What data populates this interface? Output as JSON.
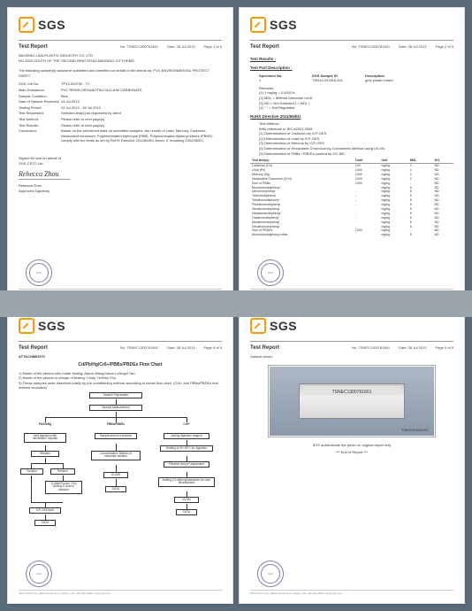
{
  "brand": {
    "name": "SGS",
    "seal_text": "SGS"
  },
  "gray_band_color": "#9aa4aa",
  "report": {
    "title": "Test Report",
    "no_label": "No.",
    "no": "TSNEC1300761601",
    "date_label": "Date:",
    "date": "28 Jul 2013",
    "page_label": "Page",
    "client": "BAODING LIDA PLASTIC INDUSTRY CO.,LTD",
    "client_addr": "NO.3333 SOUTH OF THE SECOND RING ROAD,BAODING CITY,HEBEI",
    "intro": "The following sample(s) was/were submitted and identified on behalf of the clients as: PVC ENVIRONMENTAL PROTECT SHEET",
    "footer": "SGS-CSTC Ltd. | Block North No.4, Tianjin | Tel: +86 (22) 0000 | www.sgs.com"
  },
  "page1": {
    "page_of": "1 of 5",
    "fields": [
      {
        "k": "SGS Job No.",
        "v": "TP13-003730 - TJ"
      },
      {
        "k": "Main Substance:",
        "v": "PVC RESIN,ORGANOTIN,CALCIUM CARBONATE"
      },
      {
        "k": "Sample Condition:",
        "v": "Blue"
      },
      {
        "k": "Date of Sample Received:",
        "v": "24 Jul 2013"
      },
      {
        "k": "Testing Period:",
        "v": "24 Jul 2013 - 28 Jul 2013"
      },
      {
        "k": "Test Requested:",
        "v": "Selected test(s) as requested by client"
      },
      {
        "k": "Test Method:",
        "v": "Please refer to next page(s)"
      },
      {
        "k": "Test Results:",
        "v": "Please refer to next page(s)"
      },
      {
        "k": "Conclusion:",
        "v": "Based on the performed tests on submitted samples, the results of Lead, Mercury, Cadmium, Hexavalent chromium, Polybrominated biphenyls (PBB), Polybrominated diphenyl ethers (PBDE) comply with the limits as set by RoHS Directive 2011/65/EU Annex II, recasting 2002/95/EC."
      }
    ],
    "signed_for": "Signed for and on behalf of",
    "company": "SGS-CSTC Ltd.",
    "signatory": "Rebecca Zhou",
    "signatory_title": "Approved Signatory"
  },
  "page2": {
    "page_of": "2 of 5",
    "results_head": "Test Results :",
    "part_desc_head": "Test Part Description :",
    "spec_cols": [
      "Specimen No.",
      "SGS Sample ID",
      "Description"
    ],
    "spec_row": [
      "1",
      "TSN13-007616.001",
      "grey plastic board"
    ],
    "notes_head": "Remarks:",
    "notes": [
      "(1) 1 mg/kg = 0.0001%",
      "(2) MDL = Method Detection Limit",
      "(3) ND = Not Detected ( < MDL )",
      "(4) \"-\" = Not Regulated"
    ],
    "directive_head": "RoHS Directive 2011/65/EU",
    "method_head": "Test Method:",
    "methods": [
      "With reference to IEC 62321:2008",
      "(1) Determination of Cadmium by ICP-OES",
      "(2) Determination of Lead by ICP-OES",
      "(3) Determination of Mercury by ICP-OES",
      "(4) Determination of Hexavalent Chromium by Colorimetric Method using UV-Vis",
      "(5) Determination of PBBs / PBDEs content by GC-MS"
    ],
    "table": {
      "columns": [
        "Test Item(s)",
        "Limit",
        "Unit",
        "MDL",
        "001"
      ],
      "rows": [
        [
          "Cadmium (Cd)",
          "100",
          "mg/kg",
          "2",
          "ND"
        ],
        [
          "Lead (Pb)",
          "1000",
          "mg/kg",
          "2",
          "ND"
        ],
        [
          "Mercury (Hg)",
          "1000",
          "mg/kg",
          "2",
          "ND"
        ],
        [
          "Hexavalent Chromium (CrVI)",
          "1000",
          "mg/kg",
          "2",
          "ND"
        ],
        [
          "Sum of PBBs",
          "1000",
          "mg/kg",
          "-",
          "ND"
        ],
        [
          "Monobromobiphenyl",
          "-",
          "mg/kg",
          "5",
          "ND"
        ],
        [
          "Dibromobiphenyl",
          "-",
          "mg/kg",
          "5",
          "ND"
        ],
        [
          "Tribromobiphenyl",
          "-",
          "mg/kg",
          "5",
          "ND"
        ],
        [
          "Tetrabromobiphenyl",
          "-",
          "mg/kg",
          "5",
          "ND"
        ],
        [
          "Pentabromobiphenyl",
          "-",
          "mg/kg",
          "5",
          "ND"
        ],
        [
          "Hexabromobiphenyl",
          "-",
          "mg/kg",
          "5",
          "ND"
        ],
        [
          "Heptabromobiphenyl",
          "-",
          "mg/kg",
          "5",
          "ND"
        ],
        [
          "Octabromobiphenyl",
          "-",
          "mg/kg",
          "5",
          "ND"
        ],
        [
          "Nonabromobiphenyl",
          "-",
          "mg/kg",
          "5",
          "ND"
        ],
        [
          "Decabromobiphenyl",
          "-",
          "mg/kg",
          "5",
          "ND"
        ],
        [
          "Sum of PBDEs",
          "1000",
          "mg/kg",
          "-",
          "ND"
        ],
        [
          "Monobromodiphenyl ether",
          "-",
          "mg/kg",
          "5",
          "ND"
        ]
      ]
    }
  },
  "page3": {
    "page_of": "4 of 5",
    "attachments": "ATTACHMENTS",
    "chart_title": "Cd/Pb/Hg/Cr6+/PBBs/PBDEs Flow Chart",
    "chart_notes": [
      "1) Name of the person who made testing: Aaron Wang/Jason Li/Angel Yao",
      "2) Name of the person in charge of testing: Cindy Yin/Rex Zhu",
      "3) These samples were dissolved totally by pre-conditioning method according to below flow chart. (Cr6+ and PBBs/PBDEs test method excluded)"
    ],
    "nodes": {
      "prep": "Sample Preparation",
      "meas": "Sample Measurement",
      "col1": "Pb/Cd/Hg",
      "col2": "PBBs/PBDEs",
      "col3": "Cr6+",
      "a1": "Acid digestion with microwave/ hotplate",
      "a2": "Filtration",
      "a3": "Solution",
      "a3b": "Residue",
      "a4": "1) Alkali Fusion / Dry Ashing 2) Acid to dissolve",
      "a5": "ICP-OES/AAS",
      "b1": "Sample/solvent extraction",
      "b2": "Concentration/ Dilution of extraction solution",
      "b3": "GC/MS",
      "b4": "DATA",
      "c1": "Adding digestion reagent",
      "c2": "Heating to 90~95°C for digestion",
      "c3": "Filtration and pH adjustment",
      "c4": "Adding 1,5-diphenylcarbazide for color development",
      "c5": "UV/Vis",
      "c6": "DATA",
      "d": "DATA"
    }
  },
  "page5": {
    "page_of": "5 of 5",
    "sample_photo": "Sample photo:",
    "sample_id": "TSNEC1300761601",
    "sample_sub": "TSN13-007616.001",
    "auth": "SGS authenticate the photo on original report only",
    "end": "*** End of Report ***"
  }
}
